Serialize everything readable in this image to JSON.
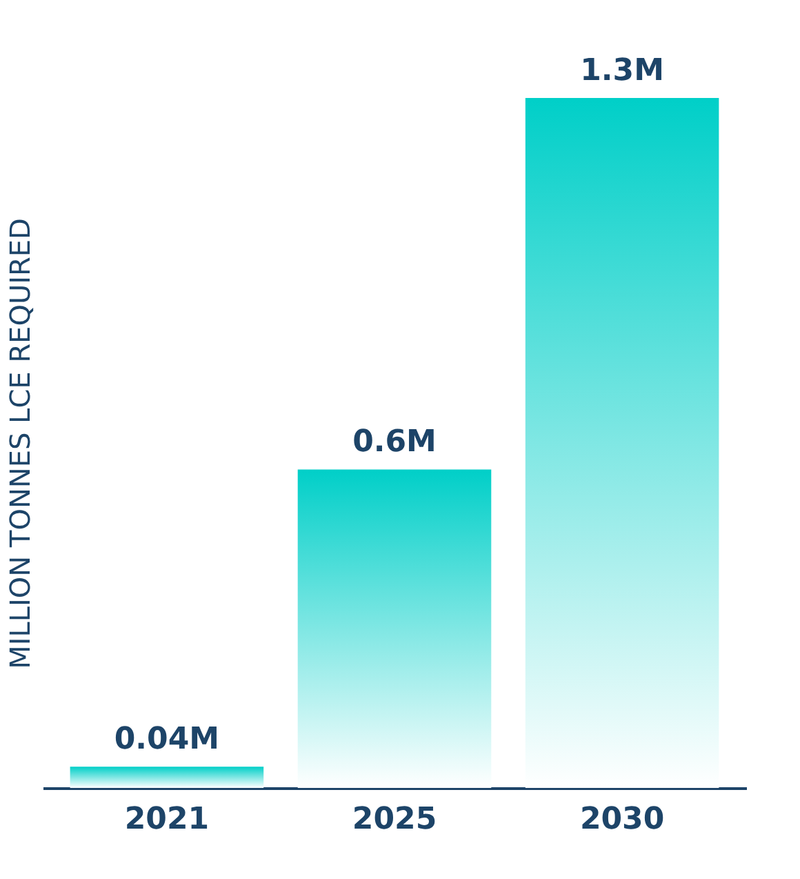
{
  "chart_data": {
    "type": "bar",
    "categories": [
      "2021",
      "2025",
      "2030"
    ],
    "values": [
      0.04,
      0.6,
      1.3
    ],
    "value_labels": [
      "0.04M",
      "0.6M",
      "1.3M"
    ],
    "color": "#00cfc8",
    "ylabel": "MILLION TONNES LCE REQUIRED",
    "grid": false
  }
}
